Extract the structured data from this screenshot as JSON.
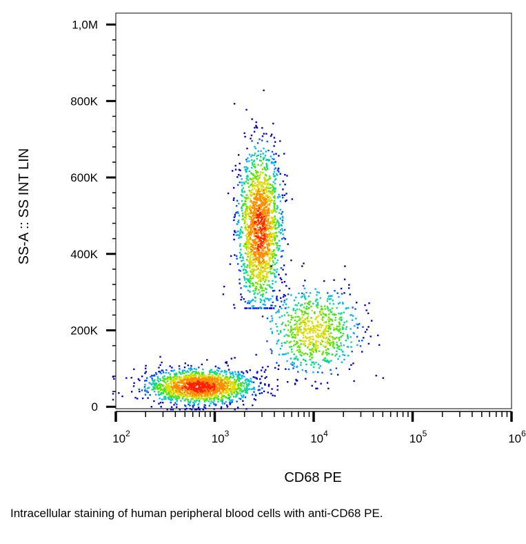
{
  "chart_data": {
    "type": "scatter",
    "xlabel": "CD68 PE",
    "ylabel": "SS-A :: SS INT LIN",
    "x_scale": "log",
    "xlim": [
      100,
      1000000
    ],
    "ylim": [
      -5000,
      1030000
    ],
    "x_ticks": [
      {
        "value": 100,
        "base": "10",
        "exp": "2"
      },
      {
        "value": 1000,
        "base": "10",
        "exp": "3"
      },
      {
        "value": 10000,
        "base": "10",
        "exp": "4"
      },
      {
        "value": 100000,
        "base": "10",
        "exp": "5"
      },
      {
        "value": 1000000,
        "base": "10",
        "exp": "6"
      }
    ],
    "y_ticks": [
      {
        "value": 0,
        "label": "0"
      },
      {
        "value": 200000,
        "label": "200K"
      },
      {
        "value": 400000,
        "label": "400K"
      },
      {
        "value": 600000,
        "label": "600K"
      },
      {
        "value": 800000,
        "label": "800K"
      },
      {
        "value": 1000000,
        "label": "1,0M"
      }
    ],
    "grid": false,
    "coloring": "point density (blue → green → yellow → red)",
    "density_colors": [
      "#0000c8",
      "#0050ff",
      "#00b4ff",
      "#00dc8c",
      "#50e600",
      "#dcdc00",
      "#ff8c00",
      "#ff1e00"
    ],
    "populations": [
      {
        "center_x": 700,
        "center_y": 55000,
        "x_range": [
          130,
          3000
        ],
        "y_range": [
          15000,
          130000
        ],
        "relative_size": 0.42
      },
      {
        "center_x": 2800,
        "center_y": 470000,
        "x_range": [
          1500,
          5500
        ],
        "y_range": [
          280000,
          810000
        ],
        "relative_size": 0.4
      },
      {
        "center_x": 10000,
        "center_y": 200000,
        "x_range": [
          2500,
          35000
        ],
        "y_range": [
          70000,
          350000
        ],
        "relative_size": 0.18
      }
    ]
  },
  "caption": "Intracellular staining of human peripheral blood cells with anti-CD68 PE."
}
